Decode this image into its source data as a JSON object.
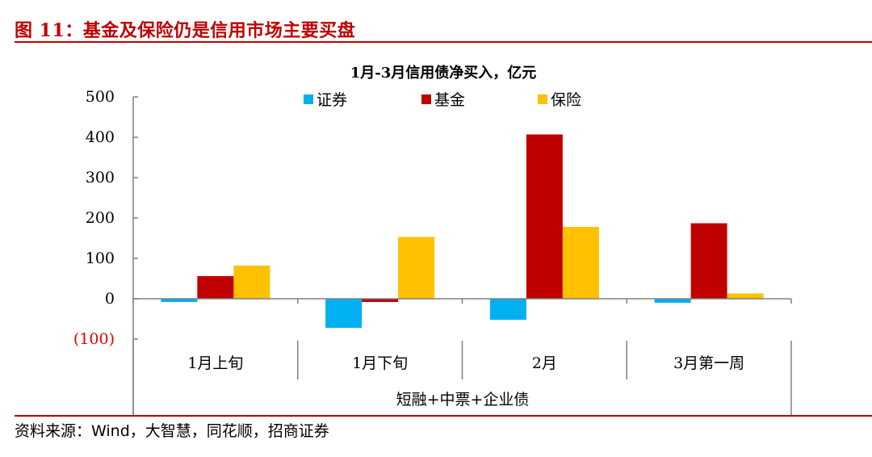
{
  "figure": {
    "title": "图 11：基金及保险仍是信用市场主要买盘",
    "source": "资料来源：Wind，大智慧，同花顺，招商证券"
  },
  "colors": {
    "accent": "#c00000",
    "negative_label": "#e00000",
    "axis": "#808080"
  },
  "chart_data": {
    "type": "bar",
    "title": "1月-3月信用债净买入，亿元",
    "categories": [
      "1月上旬",
      "1月下旬",
      "2月",
      "3月第一周"
    ],
    "category_group_label": "短融+中票+企业债",
    "series": [
      {
        "name": "证券",
        "color": "#00b0f0",
        "values": [
          -8,
          -72,
          -52,
          -10
        ]
      },
      {
        "name": "基金",
        "color": "#c00000",
        "values": [
          56,
          -8,
          407,
          187
        ]
      },
      {
        "name": "保险",
        "color": "#ffc000",
        "values": [
          82,
          153,
          178,
          13
        ]
      }
    ],
    "ylim": [
      -100,
      500
    ],
    "yticks": [
      500,
      400,
      300,
      200,
      100,
      0,
      -100
    ],
    "ytick_labels": [
      "500",
      "400",
      "300",
      "200",
      "100",
      "0",
      "(100)"
    ],
    "legend_position": "top",
    "grid": false,
    "xlabel": "",
    "ylabel": ""
  }
}
